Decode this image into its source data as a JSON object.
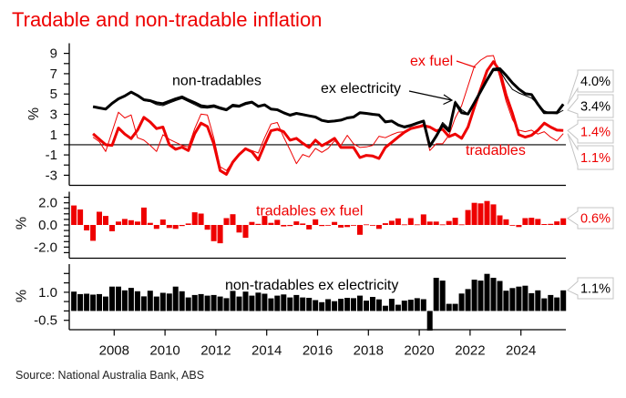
{
  "title": "Tradable and non-tradable inflation",
  "source": "Source: National Australia Bank, ABS",
  "colors": {
    "accent_red": "#ee0000",
    "black": "#000000",
    "callout_border": "#c4c4c4"
  },
  "chart_data": [
    {
      "panel": "top",
      "type": "line",
      "title": "Tradable and non-tradable inflation (year-ended)",
      "ylabel": "%",
      "ylim": [
        -4,
        10
      ],
      "yticks": [
        9,
        7,
        5,
        3,
        1,
        -1,
        -3
      ],
      "ytick_labels": [
        "9",
        "7",
        "5",
        "3",
        "1",
        "-1",
        "-3"
      ],
      "minor_ticks": {
        "from": -3,
        "to": 9,
        "step": 1
      },
      "zero_line": true,
      "grid": false,
      "x": [
        "2006Q2",
        "2006Q3",
        "2006Q4",
        "2007Q1",
        "2007Q2",
        "2007Q3",
        "2007Q4",
        "2008Q1",
        "2008Q2",
        "2008Q3",
        "2008Q4",
        "2009Q1",
        "2009Q2",
        "2009Q3",
        "2009Q4",
        "2010Q1",
        "2010Q2",
        "2010Q3",
        "2010Q4",
        "2011Q1",
        "2011Q2",
        "2011Q3",
        "2011Q4",
        "2012Q1",
        "2012Q2",
        "2012Q3",
        "2012Q4",
        "2013Q1",
        "2013Q2",
        "2013Q3",
        "2013Q4",
        "2014Q1",
        "2014Q2",
        "2014Q3",
        "2014Q4",
        "2015Q1",
        "2015Q2",
        "2015Q3",
        "2015Q4",
        "2016Q1",
        "2016Q2",
        "2016Q3",
        "2016Q4",
        "2017Q1",
        "2017Q2",
        "2017Q3",
        "2017Q4",
        "2018Q1",
        "2018Q2",
        "2018Q3",
        "2018Q4",
        "2019Q1",
        "2019Q2",
        "2019Q3",
        "2019Q4",
        "2020Q1",
        "2020Q2",
        "2020Q3",
        "2020Q4",
        "2021Q1",
        "2021Q2",
        "2021Q3",
        "2021Q4",
        "2022Q1",
        "2022Q2",
        "2022Q3",
        "2022Q4",
        "2023Q1",
        "2023Q2",
        "2023Q3",
        "2023Q4",
        "2024Q1",
        "2024Q2",
        "2024Q3",
        "2024Q4",
        "2025Q1",
        "2025Q2",
        "2025Q3"
      ],
      "series": [
        {
          "id": "tradables-ex-fuel",
          "name": "tradables ex fuel",
          "color": "#ee0000",
          "emphasis": "secondary",
          "values": [
            null,
            null,
            null,
            0.75,
            0.3,
            -0.66,
            1.29,
            3.21,
            2.64,
            2.94,
            0.69,
            0.45,
            -0.06,
            -0.66,
            0.99,
            0.54,
            0.24,
            -0.06,
            -0.21,
            1.59,
            3.03,
            2.94,
            0.69,
            -2.16,
            -2.55,
            -1.65,
            -0.96,
            -0.42,
            -0.57,
            -0.81,
            0.69,
            2.04,
            2.19,
            0.75,
            -0.51,
            -1.86,
            -0.96,
            -1.2,
            -0.36,
            -0.75,
            -0.36,
            0.39,
            -0.06,
            0.93,
            0.09,
            -0.27,
            -0.21,
            -0.06,
            0.84,
            0.69,
            0.99,
            1.23,
            1.29,
            1.5,
            1.74,
            2.04,
            -0.57,
            0.09,
            0.09,
            0.93,
            2.64,
            3.84,
            5.79,
            7.74,
            8.34,
            8.73,
            8.79,
            6.69,
            4.29,
            2.49,
            1.44,
            1.29,
            1.44,
            1.05,
            1.29,
            0.75,
            0.39,
            1.1
          ]
        },
        {
          "id": "tradables",
          "name": "tradables",
          "color": "#ee0000",
          "emphasis": "primary",
          "values": [
            null,
            null,
            null,
            1.08,
            0.54,
            0.0,
            -0.06,
            1.65,
            1.05,
            0.6,
            1.44,
            2.7,
            2.25,
            1.59,
            1.74,
            0.0,
            -0.45,
            -0.24,
            -0.57,
            1.1,
            2.13,
            1.8,
            0.09,
            -2.55,
            -2.91,
            -1.71,
            -0.96,
            -0.39,
            -0.69,
            -1.5,
            0.0,
            1.38,
            1.53,
            1.29,
            0.45,
            0.63,
            0.15,
            -0.27,
            0.45,
            -0.1,
            0.24,
            0.63,
            -0.27,
            -0.27,
            -0.27,
            -1.26,
            -1.05,
            -1.11,
            -1.35,
            -0.27,
            0.24,
            0.75,
            1.23,
            1.59,
            1.74,
            1.89,
            1.74,
            1.38,
            1.53,
            0.8,
            1.05,
            0.63,
            1.74,
            3.69,
            5.49,
            7.29,
            8.19,
            7.29,
            4.89,
            3.09,
            0.99,
            0.75,
            0.93,
            1.44,
            2.13,
            1.74,
            1.44,
            1.4
          ]
        },
        {
          "id": "non-tradables-ex-electricity",
          "name": "non-tradables ex electricity",
          "color": "#000000",
          "emphasis": "secondary",
          "values": [
            null,
            null,
            null,
            3.7,
            3.6,
            3.5,
            4.0,
            4.45,
            4.75,
            5.1,
            4.8,
            4.35,
            4.25,
            3.95,
            3.85,
            4.1,
            4.35,
            4.55,
            4.25,
            3.95,
            3.65,
            3.6,
            3.7,
            3.5,
            3.35,
            3.75,
            3.7,
            3.95,
            4.1,
            3.7,
            3.85,
            3.45,
            3.4,
            3.2,
            3.0,
            3.15,
            3.05,
            2.9,
            2.75,
            2.45,
            2.3,
            2.35,
            2.45,
            2.6,
            2.7,
            3.05,
            3.05,
            2.95,
            2.95,
            2.35,
            2.35,
            2.0,
            1.85,
            2.0,
            2.2,
            2.3,
            -0.05,
            1.0,
            2.2,
            1.6,
            4.3,
            3.45,
            3.05,
            4.05,
            5.2,
            6.25,
            7.3,
            7.3,
            6.3,
            5.45,
            5.1,
            4.85,
            4.6,
            4.0,
            3.35,
            3.1,
            3.05,
            3.4
          ]
        },
        {
          "id": "non-tradables",
          "name": "non-tradables",
          "color": "#000000",
          "emphasis": "primary",
          "values": [
            null,
            null,
            null,
            3.75,
            3.63,
            3.51,
            4.08,
            4.53,
            4.8,
            5.19,
            4.86,
            4.44,
            4.35,
            4.14,
            4.05,
            4.29,
            4.53,
            4.71,
            4.41,
            4.15,
            3.84,
            3.75,
            3.84,
            3.63,
            3.45,
            3.9,
            3.81,
            4.08,
            4.2,
            3.78,
            3.93,
            3.51,
            3.45,
            3.15,
            2.91,
            3.09,
            2.97,
            2.85,
            2.73,
            2.4,
            2.28,
            2.34,
            2.43,
            2.64,
            2.73,
            3.15,
            3.09,
            3.0,
            2.94,
            2.25,
            2.34,
            1.95,
            1.74,
            1.89,
            2.13,
            2.34,
            -0.15,
            0.84,
            1.95,
            1.35,
            4.14,
            3.15,
            3.03,
            4.14,
            5.25,
            6.39,
            7.44,
            7.5,
            6.84,
            6.09,
            5.49,
            5.04,
            4.95,
            3.99,
            3.15,
            3.15,
            3.15,
            4.0
          ]
        }
      ],
      "annotations": [
        {
          "text": "non-tradables",
          "color": "#000000"
        },
        {
          "text": "ex electricity",
          "color": "#000000"
        },
        {
          "text": "ex fuel",
          "color": "#ee0000"
        },
        {
          "text": "tradables",
          "color": "#ee0000"
        }
      ],
      "callouts": [
        {
          "label": "4.0%",
          "series": "non-tradables",
          "value": 4.0,
          "color": "#000000"
        },
        {
          "label": "3.4%",
          "series": "non-tradables ex electricity",
          "value": 3.4,
          "color": "#000000"
        },
        {
          "label": "1.4%",
          "series": "tradables",
          "value": 1.4,
          "color": "#ee0000"
        },
        {
          "label": "1.1%",
          "series": "tradables ex fuel",
          "value": 1.1,
          "color": "#ee0000"
        }
      ]
    },
    {
      "panel": "middle",
      "type": "bar",
      "title": "tradables ex fuel (quarterly)",
      "ylabel": "%",
      "ylim": [
        -3,
        3
      ],
      "yticks": [
        2.0,
        0.0,
        -2.0
      ],
      "ytick_labels": [
        "2.0",
        "0.0",
        "-2.0"
      ],
      "minor_ticks": {
        "from": -2.5,
        "to": 2.5,
        "step": 0.5
      },
      "grid": false,
      "x": [
        "2006Q2",
        "2006Q3",
        "2006Q4",
        "2007Q1",
        "2007Q2",
        "2007Q3",
        "2007Q4",
        "2008Q1",
        "2008Q2",
        "2008Q3",
        "2008Q4",
        "2009Q1",
        "2009Q2",
        "2009Q3",
        "2009Q4",
        "2010Q1",
        "2010Q2",
        "2010Q3",
        "2010Q4",
        "2011Q1",
        "2011Q2",
        "2011Q3",
        "2011Q4",
        "2012Q1",
        "2012Q2",
        "2012Q3",
        "2012Q4",
        "2013Q1",
        "2013Q2",
        "2013Q3",
        "2013Q4",
        "2014Q1",
        "2014Q2",
        "2014Q3",
        "2014Q4",
        "2015Q1",
        "2015Q2",
        "2015Q3",
        "2015Q4",
        "2016Q1",
        "2016Q2",
        "2016Q3",
        "2016Q4",
        "2017Q1",
        "2017Q2",
        "2017Q3",
        "2017Q4",
        "2018Q1",
        "2018Q2",
        "2018Q3",
        "2018Q4",
        "2019Q1",
        "2019Q2",
        "2019Q3",
        "2019Q4",
        "2020Q1",
        "2020Q2",
        "2020Q3",
        "2020Q4",
        "2021Q1",
        "2021Q2",
        "2021Q3",
        "2021Q4",
        "2022Q1",
        "2022Q2",
        "2022Q3",
        "2022Q4",
        "2023Q1",
        "2023Q2",
        "2023Q3",
        "2023Q4",
        "2024Q1",
        "2024Q2",
        "2024Q3",
        "2024Q4",
        "2025Q1",
        "2025Q2",
        "2025Q3"
      ],
      "series": [
        {
          "id": "tradables-ex-fuel-qoq",
          "name": "tradables ex fuel",
          "color": "#ee0000",
          "values": [
            1.76,
            1.4,
            -0.49,
            -1.43,
            1.19,
            0.81,
            -0.57,
            0.3,
            0.54,
            0.43,
            0.3,
            1.57,
            0.19,
            -0.35,
            0.49,
            -0.27,
            -0.35,
            -0.1,
            0.13,
            1.14,
            1.03,
            -0.43,
            -1.46,
            -1.65,
            0.62,
            0.97,
            -0.68,
            -1.16,
            0.27,
            0.1,
            0.81,
            0.19,
            0.46,
            -0.13,
            -0.1,
            0.32,
            0.13,
            -0.4,
            0.51,
            -0.1,
            -0.05,
            0.27,
            -0.24,
            -0.19,
            -0.05,
            -0.89,
            0.05,
            -0.05,
            -0.35,
            0.16,
            0.38,
            0.59,
            0.05,
            0.62,
            0.05,
            0.95,
            0.3,
            0.3,
            0.05,
            0.35,
            0.65,
            0.05,
            1.35,
            2.0,
            1.95,
            2.16,
            1.86,
            0.86,
            0.51,
            0.0,
            -0.19,
            0.62,
            0.65,
            0.54,
            0.08,
            0.1,
            0.32,
            0.6
          ]
        }
      ],
      "annotations": [
        {
          "text": "tradables ex fuel",
          "color": "#ee0000"
        }
      ],
      "callouts": [
        {
          "label": "0.6%",
          "series": "tradables ex fuel",
          "value": 0.6,
          "color": "#ee0000"
        }
      ]
    },
    {
      "panel": "bottom",
      "type": "bar",
      "title": "non-tradables ex electricity (quarterly)",
      "ylabel": "%",
      "ylim": [
        -1,
        2.5
      ],
      "yticks": [
        1.0,
        -0.5
      ],
      "ytick_labels": [
        "1.0",
        "-0.5"
      ],
      "minor_ticks": {
        "from": -0.5,
        "to": 2.0,
        "step": 0.5
      },
      "grid": false,
      "xticks": [
        2008,
        2010,
        2012,
        2014,
        2016,
        2018,
        2020,
        2022,
        2024
      ],
      "xtick_labels": [
        "2008",
        "2010",
        "2012",
        "2014",
        "2016",
        "2018",
        "2020",
        "2022",
        "2024"
      ],
      "x": [
        "2006Q2",
        "2006Q3",
        "2006Q4",
        "2007Q1",
        "2007Q2",
        "2007Q3",
        "2007Q4",
        "2008Q1",
        "2008Q2",
        "2008Q3",
        "2008Q4",
        "2009Q1",
        "2009Q2",
        "2009Q3",
        "2009Q4",
        "2010Q1",
        "2010Q2",
        "2010Q3",
        "2010Q4",
        "2011Q1",
        "2011Q2",
        "2011Q3",
        "2011Q4",
        "2012Q1",
        "2012Q2",
        "2012Q3",
        "2012Q4",
        "2013Q1",
        "2013Q2",
        "2013Q3",
        "2013Q4",
        "2014Q1",
        "2014Q2",
        "2014Q3",
        "2014Q4",
        "2015Q1",
        "2015Q2",
        "2015Q3",
        "2015Q4",
        "2016Q1",
        "2016Q2",
        "2016Q3",
        "2016Q4",
        "2017Q1",
        "2017Q2",
        "2017Q3",
        "2017Q4",
        "2018Q1",
        "2018Q2",
        "2018Q3",
        "2018Q4",
        "2019Q1",
        "2019Q2",
        "2019Q3",
        "2019Q4",
        "2020Q1",
        "2020Q2",
        "2020Q3",
        "2020Q4",
        "2021Q1",
        "2021Q2",
        "2021Q3",
        "2021Q4",
        "2022Q1",
        "2022Q2",
        "2022Q3",
        "2022Q4",
        "2023Q1",
        "2023Q2",
        "2023Q3",
        "2023Q4",
        "2024Q1",
        "2024Q2",
        "2024Q3",
        "2024Q4",
        "2025Q1",
        "2025Q2",
        "2025Q3"
      ],
      "series": [
        {
          "id": "non-tradables-ex-electricity-qoq",
          "name": "non-tradables ex electricity",
          "color": "#000000",
          "values": [
            1.03,
            0.9,
            0.92,
            0.87,
            0.9,
            0.77,
            1.3,
            1.3,
            1.1,
            1.23,
            1.05,
            0.78,
            1.08,
            0.77,
            0.97,
            0.93,
            1.3,
            1.05,
            0.72,
            0.85,
            0.9,
            0.82,
            0.85,
            0.77,
            0.68,
            1.07,
            0.77,
            1.03,
            0.82,
            0.98,
            0.92,
            0.67,
            0.82,
            0.88,
            0.72,
            0.85,
            0.72,
            0.7,
            0.58,
            0.47,
            0.63,
            0.52,
            0.65,
            0.7,
            0.68,
            0.82,
            0.55,
            0.75,
            0.62,
            0.28,
            0.65,
            0.33,
            0.55,
            0.6,
            0.68,
            0.63,
            -1.05,
            1.77,
            1.62,
            0.38,
            0.38,
            0.93,
            1.17,
            1.67,
            1.62,
            1.98,
            1.77,
            1.6,
            1.08,
            1.22,
            1.3,
            1.35,
            0.95,
            1.1,
            0.67,
            0.85,
            0.72,
            1.1
          ]
        }
      ],
      "annotations": [
        {
          "text": "non-tradables ex electricity",
          "color": "#000000"
        }
      ],
      "callouts": [
        {
          "label": "1.1%",
          "series": "non-tradables ex electricity",
          "value": 1.1,
          "color": "#000000"
        }
      ]
    }
  ]
}
